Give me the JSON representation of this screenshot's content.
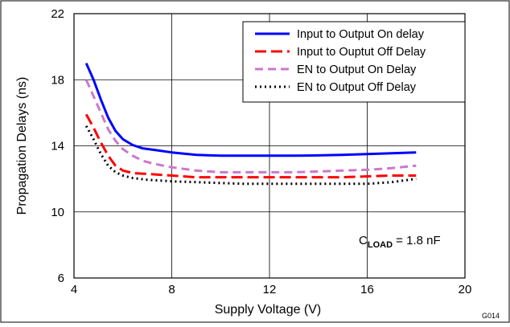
{
  "chart_data": {
    "type": "line",
    "xlabel": "Supply Voltage (V)",
    "ylabel": "Propagation Delays (ns)",
    "xlim": [
      4,
      20
    ],
    "ylim": [
      6,
      22
    ],
    "x_ticks": [
      "4",
      "8",
      "12",
      "16",
      "20"
    ],
    "y_ticks": [
      "6",
      "10",
      "14",
      "18",
      "22"
    ],
    "grid": true,
    "legend_position": "top-right",
    "annotation": {
      "prefix": "C",
      "subscript": "LOAD",
      "suffix": " = 1.8 nF"
    },
    "figure_code": "G014",
    "series": [
      {
        "name": "Input to Output On delay",
        "color": "#0000ff",
        "dash": "solid",
        "x": [
          4.5,
          4.8,
          5.1,
          5.4,
          5.7,
          6.0,
          6.4,
          6.8,
          7.3,
          8.0,
          9.0,
          10.0,
          11.0,
          12.0,
          13.0,
          14.0,
          15.0,
          16.0,
          17.0,
          18.0
        ],
        "y": [
          19.0,
          18.0,
          16.8,
          15.7,
          14.9,
          14.4,
          14.05,
          13.85,
          13.75,
          13.6,
          13.45,
          13.4,
          13.4,
          13.4,
          13.4,
          13.42,
          13.45,
          13.5,
          13.55,
          13.6
        ]
      },
      {
        "name": "Input to Ouptut Off Delay",
        "color": "#ff0000",
        "dash": "long-dash",
        "x": [
          4.5,
          4.8,
          5.1,
          5.4,
          5.7,
          6.0,
          6.4,
          7.0,
          8.0,
          9.0,
          10.0,
          11.0,
          12.0,
          13.0,
          14.0,
          15.0,
          16.0,
          17.0,
          18.0
        ],
        "y": [
          15.9,
          15.1,
          14.2,
          13.4,
          12.8,
          12.5,
          12.35,
          12.3,
          12.2,
          12.1,
          12.1,
          12.1,
          12.1,
          12.1,
          12.1,
          12.1,
          12.15,
          12.2,
          12.2
        ]
      },
      {
        "name": "EN to Output On Delay",
        "color": "#cc77cc",
        "dash": "dash",
        "x": [
          4.5,
          4.8,
          5.1,
          5.4,
          5.7,
          6.0,
          6.4,
          6.8,
          7.3,
          8.0,
          9.0,
          10.0,
          11.0,
          12.0,
          13.0,
          14.0,
          15.0,
          16.0,
          17.0,
          18.0
        ],
        "y": [
          18.0,
          17.0,
          16.0,
          15.0,
          14.3,
          13.8,
          13.4,
          13.1,
          12.9,
          12.7,
          12.5,
          12.4,
          12.4,
          12.4,
          12.4,
          12.45,
          12.5,
          12.55,
          12.65,
          12.8
        ]
      },
      {
        "name": "EN to Output Off Delay",
        "color": "#000000",
        "dash": "dot",
        "x": [
          4.5,
          4.8,
          5.1,
          5.4,
          5.7,
          6.0,
          6.4,
          7.0,
          8.0,
          9.0,
          10.0,
          11.0,
          12.0,
          13.0,
          14.0,
          15.0,
          16.0,
          17.0,
          18.0
        ],
        "y": [
          15.2,
          14.4,
          13.5,
          12.8,
          12.4,
          12.2,
          12.05,
          11.95,
          11.85,
          11.8,
          11.75,
          11.7,
          11.7,
          11.7,
          11.7,
          11.7,
          11.7,
          11.8,
          12.0
        ]
      }
    ]
  }
}
